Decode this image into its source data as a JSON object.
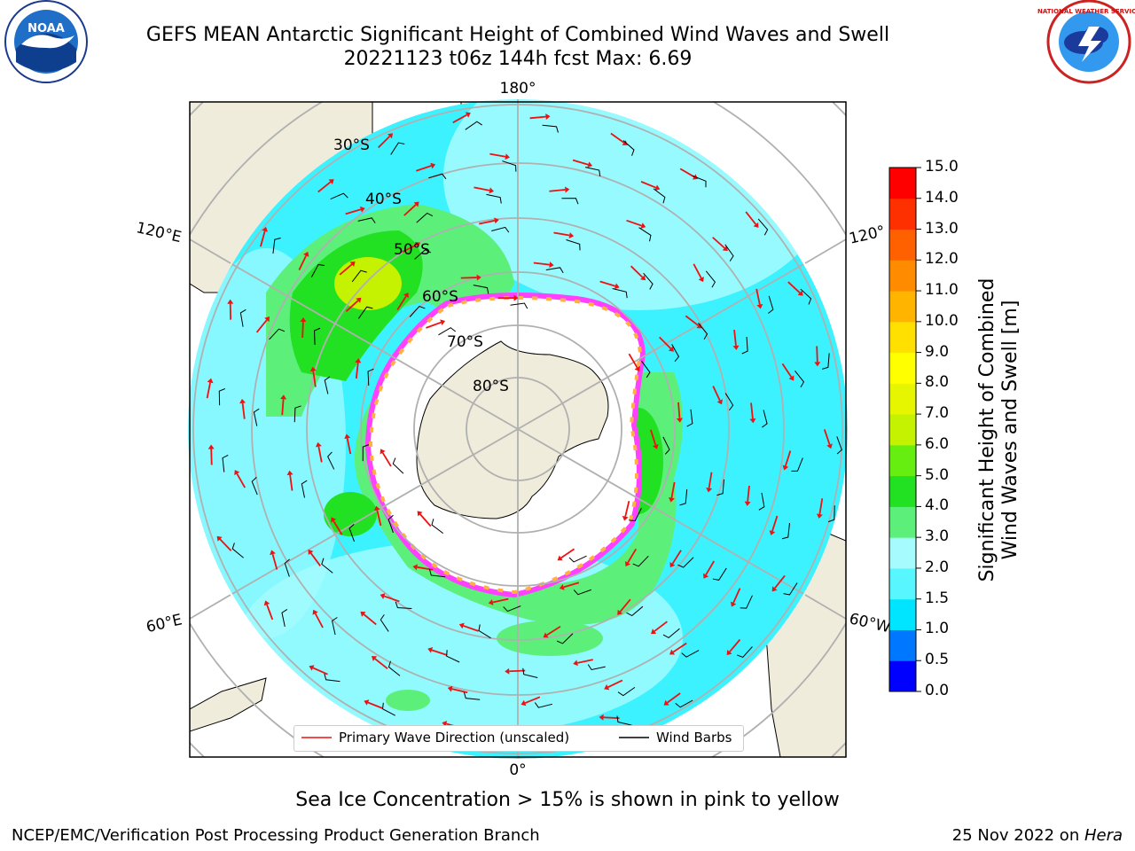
{
  "header": {
    "title_line1": "GEFS MEAN Antarctic Significant Height of Combined Wind Waves and Swell",
    "title_line2": "20221123 t06z 144h fcst   Max: 6.69"
  },
  "map": {
    "projection": "south-polar-stereographic",
    "lon_labels": {
      "top": "180°",
      "bottom": "0°",
      "left_upper": "120°E",
      "left_lower": "60°E",
      "right_upper": "120°",
      "right_lower": "60°W"
    },
    "lat_labels": [
      "30°S",
      "40°S",
      "50°S",
      "60°S",
      "70°S",
      "80°S"
    ],
    "colors": {
      "land": "#efecdc",
      "ice": "#ffffff",
      "ice_edge": [
        "#ff40ff",
        "#ff80ff",
        "#ffb040",
        "#ffd060"
      ],
      "grid": "#b0b0b0",
      "wave_arrow": "#ee1111",
      "barb": "#000000"
    }
  },
  "legend": {
    "wave_label": "Primary Wave Direction (unscaled)",
    "barb_label": "Wind Barbs"
  },
  "colorbar": {
    "title_line1": "Significant Height of Combined",
    "title_line2": "Wind Waves and Swell [m]",
    "ticks": [
      "0.0",
      "0.5",
      "1.0",
      "1.5",
      "2.0",
      "3.0",
      "4.0",
      "5.0",
      "6.0",
      "7.0",
      "8.0",
      "9.0",
      "10.0",
      "11.0",
      "12.0",
      "13.0",
      "14.0",
      "15.0"
    ],
    "colors": [
      "#0000ff",
      "#0077ff",
      "#00e5ff",
      "#58f7ff",
      "#a6fbff",
      "#5cf07a",
      "#22e022",
      "#66ee11",
      "#c4f200",
      "#e6f500",
      "#ffff00",
      "#ffe000",
      "#ffb400",
      "#ff8c00",
      "#ff6000",
      "#ff3000",
      "#ff0000"
    ]
  },
  "caption": "Sea Ice Concentration > 15% is shown in pink to yellow",
  "footer": {
    "left": "NCEP/EMC/Verification Post Processing Product Generation Branch",
    "right_date": "25 Nov 2022 on ",
    "right_host": "Hera"
  },
  "logos": {
    "left": "NOAA",
    "right": "NATIONAL WEATHER SERVICE"
  }
}
